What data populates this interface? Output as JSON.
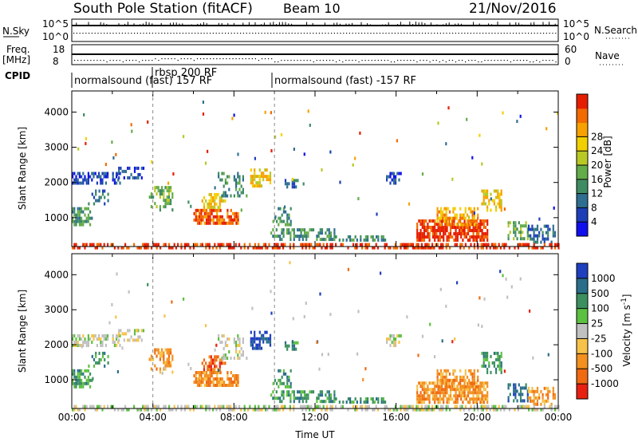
{
  "header": {
    "station": "South Pole Station (fitACF)",
    "beam": "Beam 10",
    "date": "21/Nov/2016"
  },
  "top_panels": {
    "nsky": {
      "label": "N.Sky",
      "ticks_left": [
        "10^5",
        "10^0"
      ],
      "ticks_right": [
        "10^5",
        "10^0"
      ],
      "right_label": "N.Search"
    },
    "freq": {
      "label_line1": "Freq.",
      "label_line2": "[MHz]",
      "ticks_left": [
        "18",
        "8"
      ],
      "ticks_right": [
        "60",
        "0"
      ],
      "right_label": "Nave"
    },
    "cpid": {
      "label": "CPID",
      "segments": [
        {
          "label": "normalsound (fast) 157 RF",
          "start_hour": 0.0
        },
        {
          "label": "rbsp 200 RF",
          "start_hour": 4.0
        },
        {
          "label": "normalsound (fast) -157 RF",
          "start_hour": 10.0
        }
      ]
    }
  },
  "chart_data": [
    {
      "type": "heatmap",
      "name": "power",
      "ylabel": "Slant Range [km]",
      "xlim": [
        0,
        24
      ],
      "ylim": [
        180,
        4600
      ],
      "yticks": [
        1000,
        2000,
        3000,
        4000
      ],
      "colorbar": {
        "label": "Power [dB]",
        "ticks": [
          "4",
          "8",
          "12",
          "16",
          "20",
          "24",
          "28"
        ],
        "colors": [
          "#1010ee",
          "#1c3fb8",
          "#2e6e90",
          "#3f8c62",
          "#63ac49",
          "#b8c825",
          "#f2d000",
          "#f7a200",
          "#f26a00",
          "#e61e00"
        ]
      }
    },
    {
      "type": "heatmap",
      "name": "velocity",
      "xlabel": "Time UT",
      "ylabel": "Slant Range [km]",
      "xlim": [
        0,
        24
      ],
      "ylim": [
        180,
        4600
      ],
      "yticks": [
        1000,
        2000,
        3000,
        4000
      ],
      "xticks": [
        "00:00",
        "04:00",
        "08:00",
        "12:00",
        "16:00",
        "20:00",
        "00:00"
      ],
      "colorbar": {
        "label": "Velocity [m s^-1]",
        "ticks": [
          "1000",
          "500",
          "100",
          "25",
          "-25",
          "-100",
          "-500",
          "-1000"
        ],
        "colors": [
          "#1e3fbe",
          "#2a6e8a",
          "#3c9060",
          "#5cc040",
          "#c0c0c0",
          "#f6c24a",
          "#f39020",
          "#ef6a10",
          "#e82010"
        ]
      }
    }
  ]
}
